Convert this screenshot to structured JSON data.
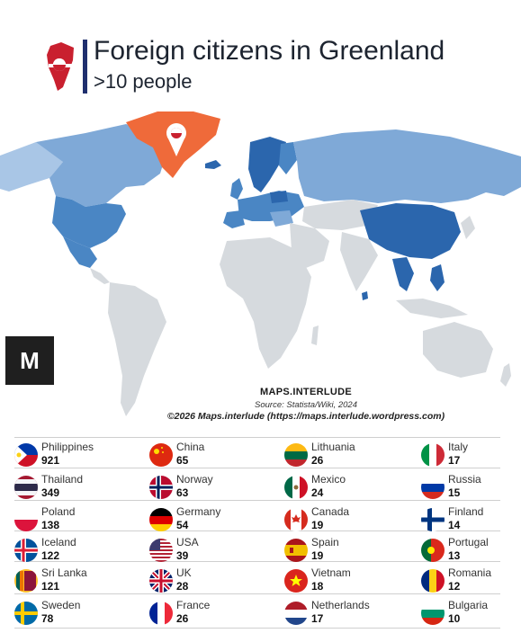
{
  "header": {
    "title": "Foreign citizens in Greenland",
    "subtitle": ">10 people"
  },
  "brand": {
    "logo_letter": "M"
  },
  "credits": {
    "brand_name": "MAPS.INTERLUDE",
    "source": "Source: Statista/Wiki, 2024",
    "copyright": "©2026 Maps.interlude (https://maps.interlude.wordpress.com)"
  },
  "colors": {
    "greenland": "#ef6a3a",
    "dark": "#2b66ad",
    "medium": "#4a86c4",
    "light": "#7fa9d7",
    "pale": "#a9c6e6",
    "no_data": "#d6dade"
  },
  "legend": [
    {
      "country": "Philippines",
      "value": "921",
      "flag": "philippines-flag"
    },
    {
      "country": "China",
      "value": "65",
      "flag": "china-flag"
    },
    {
      "country": "Lithuania",
      "value": "26",
      "flag": "lithuania-flag"
    },
    {
      "country": "Italy",
      "value": "17",
      "flag": "italy-flag"
    },
    {
      "country": "Thailand",
      "value": "349",
      "flag": "thailand-flag"
    },
    {
      "country": "Norway",
      "value": "63",
      "flag": "norway-flag"
    },
    {
      "country": "Mexico",
      "value": "24",
      "flag": "mexico-flag"
    },
    {
      "country": "Russia",
      "value": "15",
      "flag": "russia-flag"
    },
    {
      "country": "Poland",
      "value": "138",
      "flag": "poland-flag"
    },
    {
      "country": "Germany",
      "value": "54",
      "flag": "germany-flag"
    },
    {
      "country": "Canada",
      "value": "19",
      "flag": "canada-flag"
    },
    {
      "country": "Finland",
      "value": "14",
      "flag": "finland-flag"
    },
    {
      "country": "Iceland",
      "value": "122",
      "flag": "iceland-flag"
    },
    {
      "country": "USA",
      "value": "39",
      "flag": "usa-flag"
    },
    {
      "country": "Spain",
      "value": "19",
      "flag": "spain-flag"
    },
    {
      "country": "Portugal",
      "value": "13",
      "flag": "portugal-flag"
    },
    {
      "country": "Sri Lanka",
      "value": "121",
      "flag": "sri-lanka-flag"
    },
    {
      "country": "UK",
      "value": "28",
      "flag": "uk-flag"
    },
    {
      "country": "Vietnam",
      "value": "18",
      "flag": "vietnam-flag"
    },
    {
      "country": "Romania",
      "value": "12",
      "flag": "romania-flag"
    },
    {
      "country": "Sweden",
      "value": "78",
      "flag": "sweden-flag"
    },
    {
      "country": "France",
      "value": "26",
      "flag": "france-flag"
    },
    {
      "country": "Netherlands",
      "value": "17",
      "flag": "netherlands-flag"
    },
    {
      "country": "Bulgaria",
      "value": "10",
      "flag": "bulgaria-flag"
    }
  ]
}
